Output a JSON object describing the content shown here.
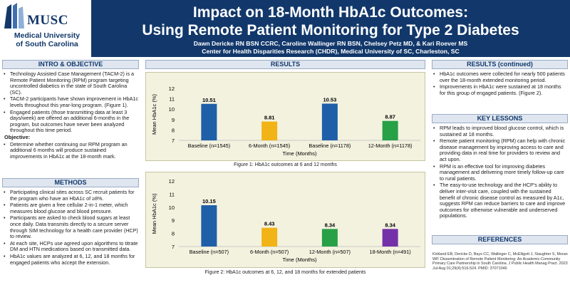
{
  "header": {
    "logo_main": "MUSC",
    "logo_sub_1": "Medical University",
    "logo_sub_2": "of South Carolina",
    "title_line1": "Impact on 18-Month HbA1c Outcomes:",
    "title_line2": "Using Remote Patient Monitoring for Type 2 Diabetes",
    "authors": "Dawn Dericke RN BSN CCRC, Caroline Wallinger RN BSN, Chelsey Petz MD, & Kari Roever MS",
    "affiliation": "Center for Health Disparities Research (CHDR), Medical University of SC, Charleston, SC"
  },
  "intro": {
    "heading": "INTRO & OBJECTIVE",
    "bullets": [
      "Technology Assisted Case Management (TACM-2) is a Remote Patient Monitoring (RPM) program targeting uncontrolled diabetics in the state of South Carolina (SC).",
      "TACM-2 participants have shown improvement in HbA1c levels throughout this year-long program. (Figure 1).",
      "Engaged patients (those transmitting data at least 3 days/week) are offered an additional 6-months in the program, but outcomes have never been analyzed throughout this time period."
    ],
    "objective_label": "Objective:",
    "objective": "Determine whether continuing our RPM program an additional 6 months will produce sustained improvements in HbA1c at the 18-month mark."
  },
  "methods": {
    "heading": "METHODS",
    "bullets": [
      "Participating clinical sites across SC recruit patients for the program who have an HbA1c of ≥8%.",
      "Patients are given a free cellular 2-in-1 meter, which measures blood glucose and blood pressure.",
      "Participants are asked to check blood sugars at least once daily. Data transmits directly to a secure server through SIM technology for a health care provider (HCP) to review.",
      "At each site, HCPs use agreed upon algorithms to titrate DM and HTN medications based on transmitted data.",
      "HbA1c values are analyzed at 6, 12, and 18 months for engaged patients who accept the extension."
    ]
  },
  "results": {
    "heading": "RESULTS",
    "figure1_caption": "Figure 1: HbA1c outcomes at 6 and 12 months",
    "figure2_caption": "Figure 2: HbA1c outcomes at 6, 12, and 18 months for extended patients"
  },
  "results_cont": {
    "heading": "RESULTS (continued)",
    "bullets": [
      "HbA1c outcomes were collected for nearly 500 patients over the 18-month extended monitoring period.",
      "Improvements in HbA1c were sustained at 18 months for this group of engaged patients. (Figure 2)."
    ]
  },
  "lessons": {
    "heading": "KEY LESSONS",
    "bullets": [
      "RPM leads to improved blood glucose control, which is sustained at 18 months.",
      "Remote patient monitoring (RPM) can help with chronic disease management by improving access to care and providing data in real time for providers to review and act upon.",
      "RPM is an effective tool for improving diabetes management and delivering more timely follow-up care to rural patients.",
      "The easy-to-use technology and the HCP's ability to deliver inter-visit care, coupled with the sustained benefit of chronic disease control as measured by A1c, suggests RPM can reduce barriers to care and improve outcomes for otherwise vulnerable and underserved populations."
    ]
  },
  "references": {
    "heading": "REFERENCES",
    "text": "Kirkland EB, Dericke D, Bays CC, Wallinger C, McElligott J, Slaughter S, Moran WP. Dissemination of Remote Patient Monitoring: An Academic-Community Primary Care Partnership in South Carolina. J Public Health Manag Pract. 2023 Jul-Aug 01;29(4):516-524. PMID: 37071046"
  },
  "colors": {
    "navy": "#12386b",
    "blue": "#1f5fa8",
    "gold": "#f2b316",
    "green": "#27a046",
    "purple": "#7531a8"
  },
  "chart_data": [
    {
      "type": "bar",
      "categories": [
        "Baseline (n=1545)",
        "6-Month (n=1545)",
        "Baseline (n=1178)",
        "12-Month (n=1178)"
      ],
      "values": [
        10.51,
        8.81,
        10.53,
        8.87
      ],
      "value_labels": [
        "10.51",
        "8.81",
        "10.53",
        "8.87"
      ],
      "colors": [
        "#1f5fa8",
        "#f2b316",
        "#1f5fa8",
        "#27a046"
      ],
      "xlabel": "Time (Months)",
      "ylabel": "Mean HbA1c (%)",
      "ylim": [
        7,
        12
      ],
      "yticks": [
        "7",
        "8",
        "9",
        "10",
        "11",
        "12"
      ],
      "grid": false
    },
    {
      "type": "bar",
      "categories": [
        "Baseline (n=507)",
        "6-Month (n=507)",
        "12-Month (n=507)",
        "18-Month (n=491)"
      ],
      "values": [
        10.15,
        8.43,
        8.34,
        8.34
      ],
      "value_labels": [
        "10.15",
        "8.43",
        "8.34",
        "8.34"
      ],
      "colors": [
        "#1f5fa8",
        "#f2b316",
        "#27a046",
        "#7531a8"
      ],
      "xlabel": "Time (Months)",
      "ylabel": "Mean HbA1c (%)",
      "ylim": [
        7,
        12
      ],
      "yticks": [
        "7",
        "8",
        "9",
        "10",
        "11",
        "12"
      ],
      "grid": false
    }
  ]
}
